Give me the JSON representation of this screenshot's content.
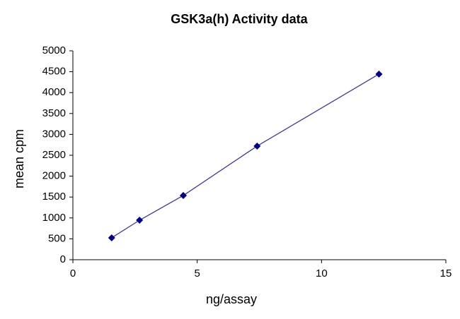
{
  "chart_data": {
    "type": "line",
    "title": "GSK3a(h) Activity data",
    "x_label": "ng/assay",
    "y_label": "mean cpm",
    "series": [
      {
        "name": "mean cpm",
        "color": "#000080",
        "line_color": "#3c3c8c",
        "x": [
          1.56,
          2.68,
          4.44,
          7.41,
          12.31
        ],
        "values": [
          524,
          946,
          1537,
          2720,
          4443
        ]
      }
    ],
    "xlim": [
      0,
      15
    ],
    "xticks": [
      0,
      5,
      10,
      15
    ],
    "ylim": [
      0,
      5000
    ],
    "yticks": [
      0,
      500,
      1000,
      1500,
      2000,
      2500,
      3000,
      3500,
      4000,
      4500,
      5000
    ],
    "grid": false
  }
}
